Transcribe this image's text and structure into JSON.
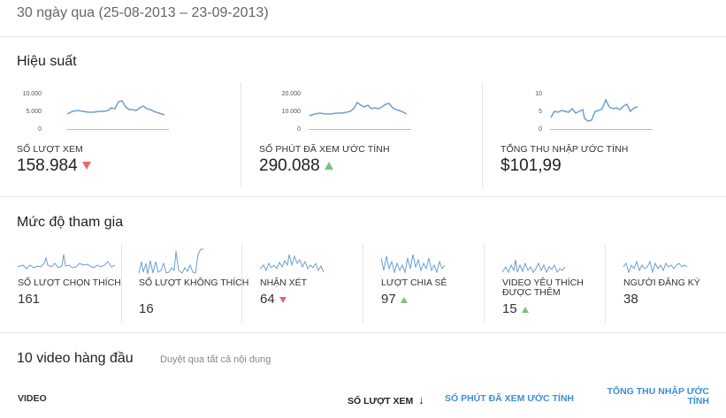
{
  "header": {
    "date_range": "30 ngày qua (25-08-2013 – 23-09-2013)"
  },
  "performance": {
    "title": "Hiệu suất",
    "metrics": [
      {
        "label": "SỐ LƯỢT XEM",
        "value": "158.984",
        "trend": "down",
        "yaxis": [
          "10.000",
          "5.000",
          "0"
        ]
      },
      {
        "label": "SỐ PHÚT ĐÃ XEM ƯỚC TÍNH",
        "value": "290.088",
        "trend": "up",
        "yaxis": [
          "20.000",
          "10.000",
          "0"
        ]
      },
      {
        "label": "TỔNG THU NHẬP ƯỚC TÍNH",
        "value": "$101,99",
        "trend": "none",
        "yaxis": [
          "10",
          "5",
          "0"
        ]
      }
    ]
  },
  "engagement": {
    "title": "Mức độ tham gia",
    "metrics": [
      {
        "label": "SỐ LƯỢT CHỌN THÍCH",
        "value": "161",
        "trend": "none"
      },
      {
        "label": "SỐ LƯỢT KHÔNG THÍCH",
        "value": "16",
        "trend": "none"
      },
      {
        "label": "NHẬN XÉT",
        "value": "64",
        "trend": "down"
      },
      {
        "label": "LƯỢT CHIA SẺ",
        "value": "97",
        "trend": "up"
      },
      {
        "label": "VIDEO YÊU THÍCH ĐƯỢC THÊM",
        "value": "15",
        "trend": "up"
      },
      {
        "label": "NGƯỜI ĐĂNG KÝ",
        "value": "38",
        "trend": "none"
      }
    ]
  },
  "top_videos": {
    "title": "10 video hàng đầu",
    "browse_link": "Duyệt qua tất cả nội dung",
    "columns": {
      "video": "VIDEO",
      "views": "SỐ LƯỢT XEM",
      "minutes": "SỐ PHÚT ĐÃ XEM ƯỚC TÍNH",
      "earnings": "TỔNG THU NHẬP ƯỚC TÍNH"
    },
    "sort_icon": "arrow-down-icon"
  },
  "colors": {
    "spark_line": "#6b9fd6",
    "trend_up": "#7cc27c",
    "trend_down": "#e06b6b",
    "link": "#3b8fd9"
  }
}
